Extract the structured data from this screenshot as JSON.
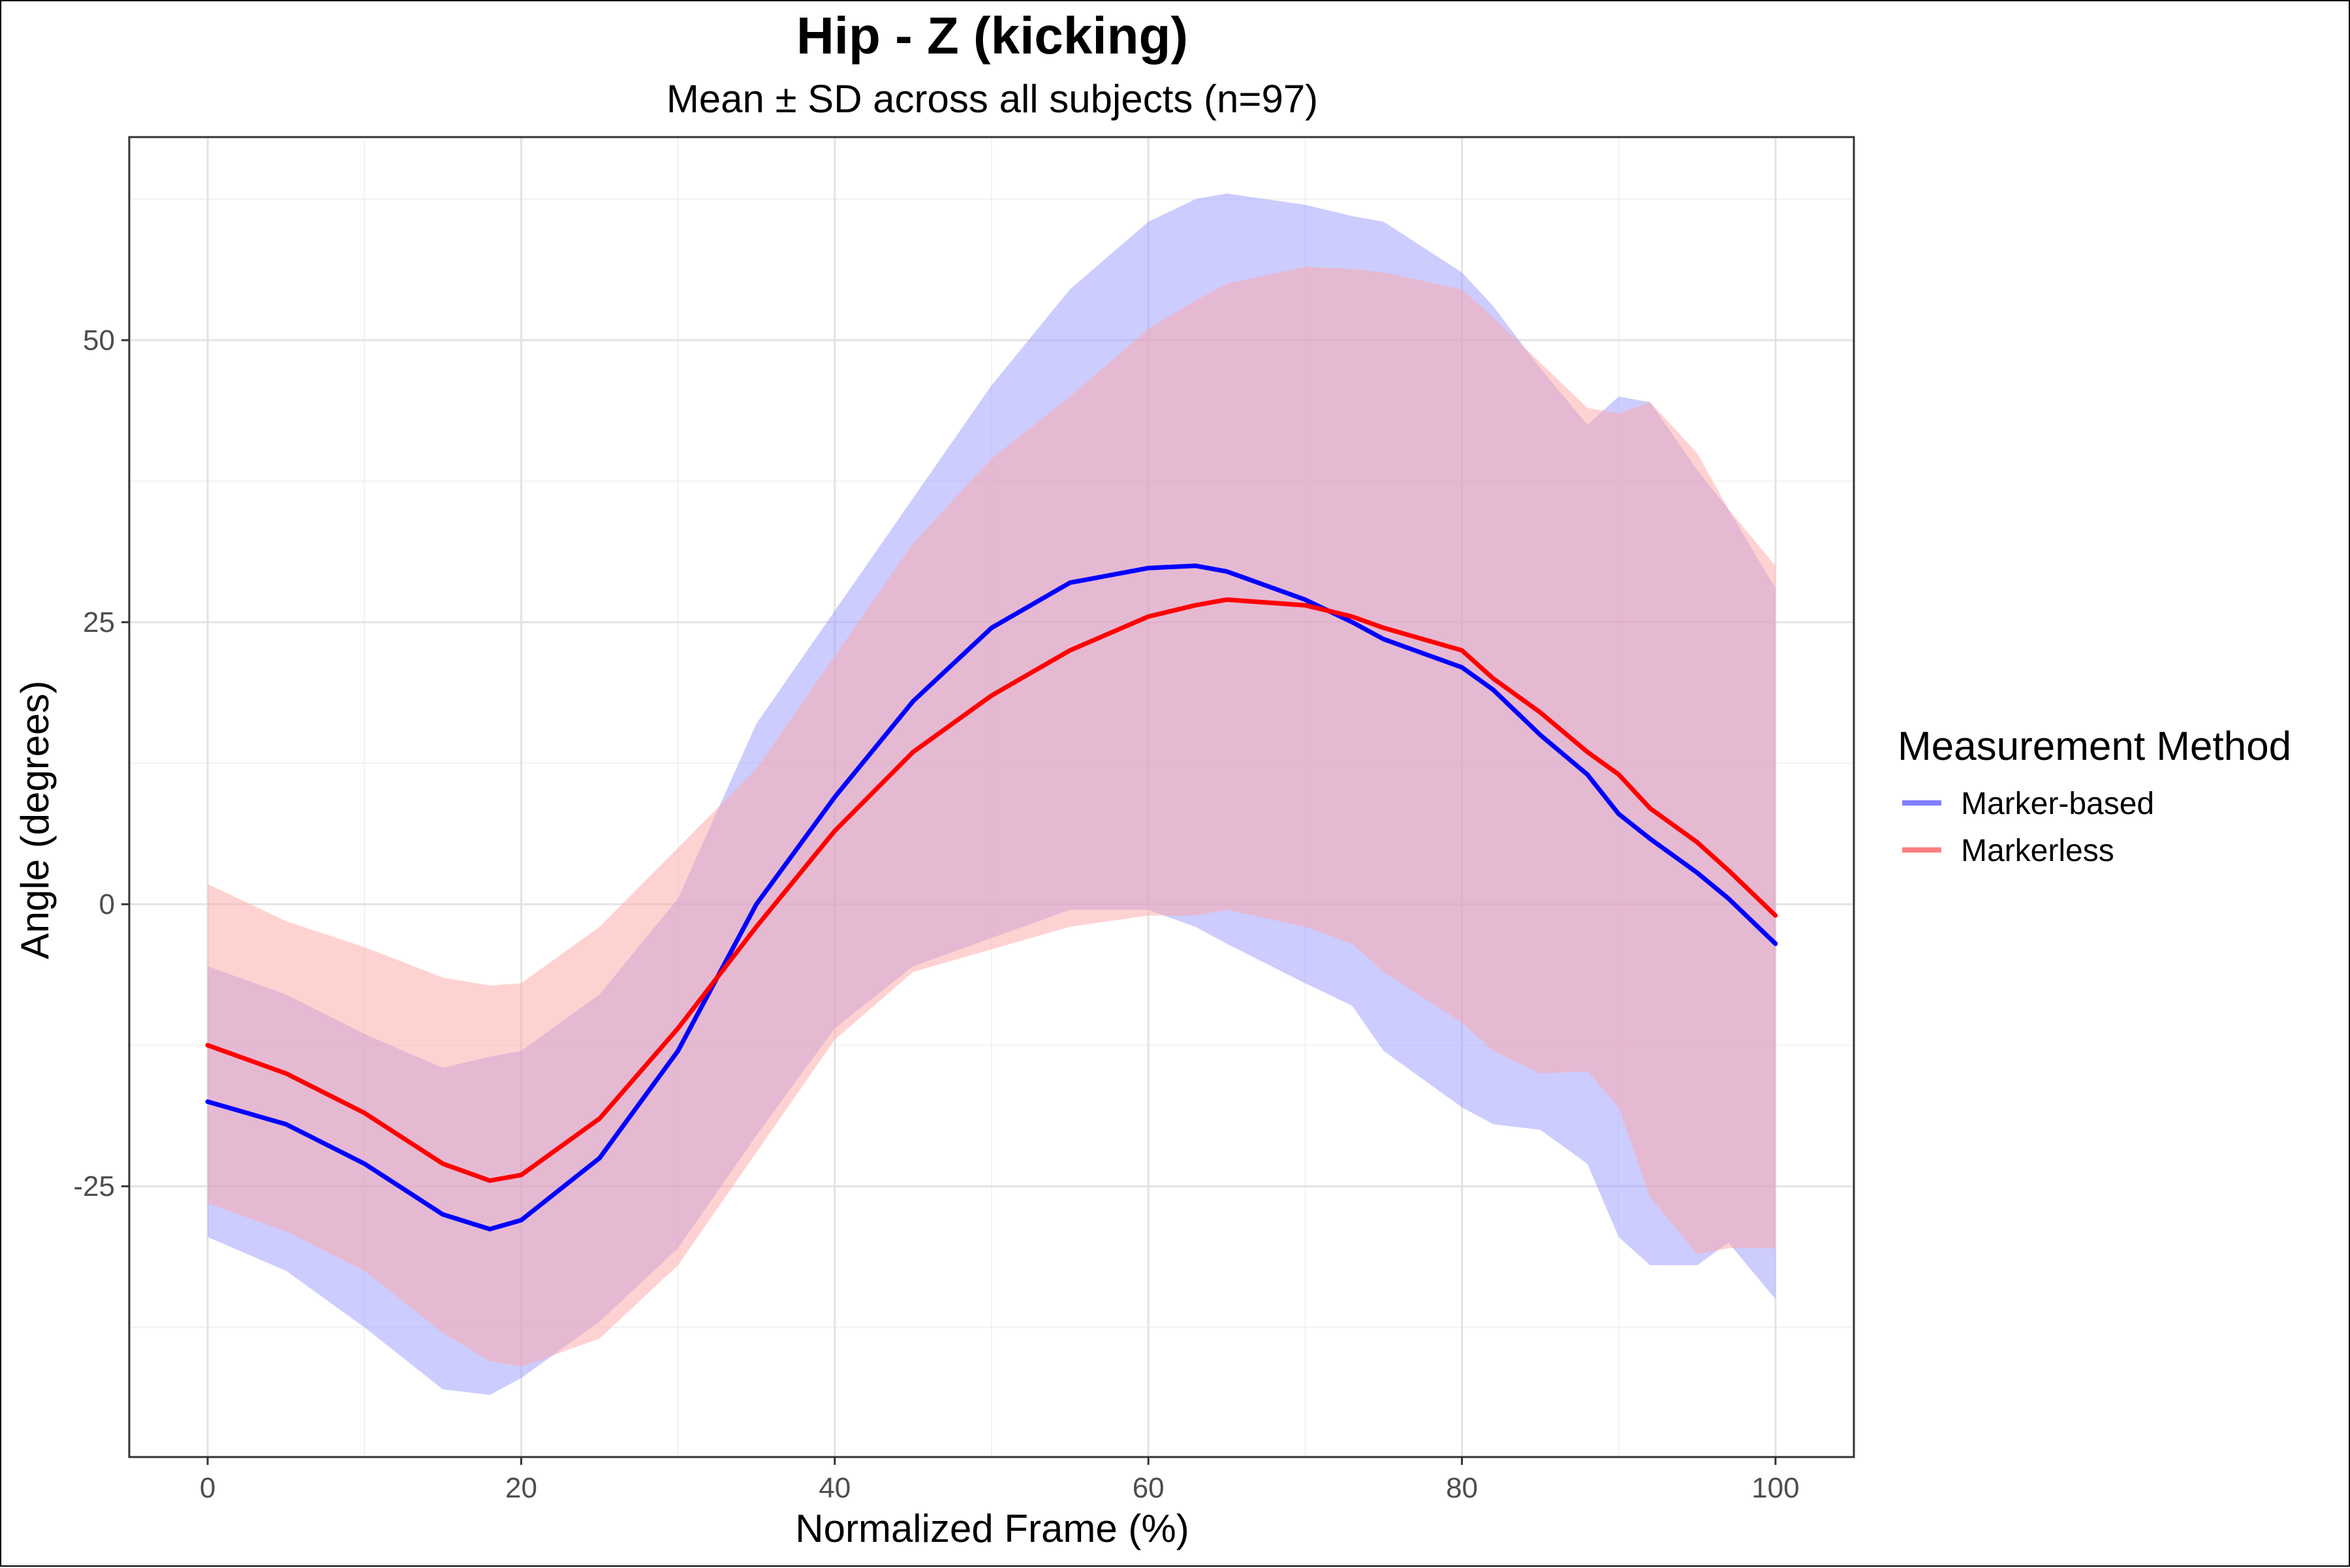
{
  "chart_data": {
    "type": "line",
    "title": "Hip - Z (kicking)",
    "subtitle": "Mean ± SD across all subjects (n=97)",
    "xlabel": "Normalized Frame (%)",
    "ylabel": "Angle (degrees)",
    "xlim": [
      -5,
      105
    ],
    "ylim": [
      -49,
      68
    ],
    "x_ticks": [
      0,
      20,
      40,
      60,
      80,
      100
    ],
    "y_ticks": [
      -25,
      0,
      25,
      50
    ],
    "x_tick_labels": [
      "0",
      "20",
      "40",
      "60",
      "80",
      "100"
    ],
    "y_tick_labels": [
      "-25",
      "0",
      "25",
      "50"
    ],
    "grid": true,
    "legend": {
      "title": "Measurement Method",
      "position": "right"
    },
    "x": [
      0,
      5,
      10,
      15,
      18,
      20,
      25,
      30,
      35,
      40,
      45,
      50,
      55,
      60,
      63,
      65,
      70,
      73,
      75,
      80,
      82,
      85,
      88,
      90,
      92,
      95,
      97,
      100
    ],
    "series": [
      {
        "name": "Marker-based",
        "color": "#0000ff",
        "band_color": "#9999ff",
        "mean": [
          -17.5,
          -19.5,
          -23,
          -27.5,
          -28.8,
          -28,
          -22.5,
          -13,
          0,
          9.5,
          18,
          24.5,
          28.5,
          29.8,
          30,
          29.5,
          27,
          25,
          23.5,
          21,
          19,
          15,
          11.5,
          8,
          5.8,
          2.8,
          0.5,
          -3.5
        ],
        "upper": [
          -5.5,
          -8,
          -11.5,
          -14.5,
          -13.5,
          -13,
          -8,
          0.5,
          16,
          26,
          36,
          46,
          54.5,
          60.5,
          62.5,
          63,
          62,
          61,
          60.5,
          56,
          53,
          47.5,
          42.5,
          45,
          44.5,
          38.5,
          35,
          28
        ],
        "lower": [
          -29.5,
          -32.5,
          -37.5,
          -43,
          -43.5,
          -42,
          -37,
          -30.5,
          -20.5,
          -11,
          -5.5,
          -3,
          -0.5,
          -0.5,
          -2,
          -3.5,
          -7,
          -9,
          -13,
          -18,
          -19.5,
          -20,
          -23,
          -29.5,
          -32,
          -32,
          -30,
          -35
        ]
      },
      {
        "name": "Markerless",
        "color": "#ff0000",
        "band_color": "#ffa6a6",
        "mean": [
          -12.5,
          -15,
          -18.5,
          -23,
          -24.5,
          -24,
          -19,
          -11,
          -2,
          6.5,
          13.5,
          18.5,
          22.5,
          25.5,
          26.5,
          27,
          26.5,
          25.5,
          24.5,
          22.5,
          20,
          17,
          13.5,
          11.5,
          8.5,
          5.5,
          3,
          -1
        ],
        "upper": [
          1.8,
          -1.5,
          -3.8,
          -6.5,
          -7.2,
          -7,
          -2,
          5,
          12,
          22,
          32,
          39.5,
          45,
          51,
          53.5,
          55,
          56.5,
          56.3,
          56,
          54.5,
          52,
          48,
          44,
          43.5,
          44.5,
          40,
          35,
          30
        ],
        "lower": [
          -26.5,
          -29,
          -32.5,
          -38,
          -40.5,
          -41,
          -38.5,
          -32,
          -22,
          -12,
          -6,
          -4,
          -2,
          -1,
          -1,
          -0.5,
          -2,
          -3.5,
          -6,
          -10.5,
          -13,
          -15,
          -14.8,
          -18,
          -26,
          -31,
          -30.5,
          -30.5
        ]
      }
    ]
  }
}
